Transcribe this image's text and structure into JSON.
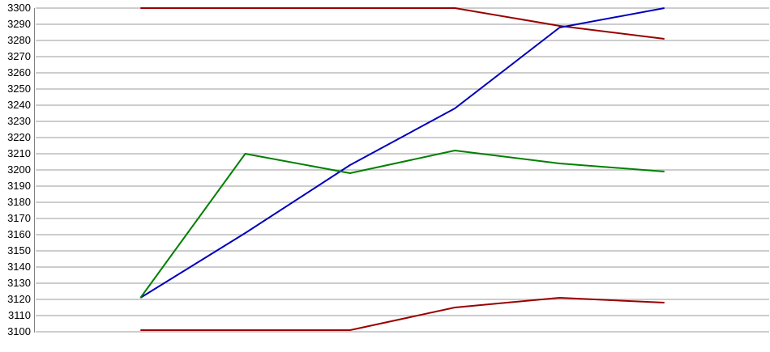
{
  "chart_data": {
    "type": "line",
    "title": "",
    "xlabel": "",
    "ylabel": "",
    "x": [
      1,
      2,
      3,
      4,
      5,
      6
    ],
    "series": [
      {
        "name": "dark-red-upper",
        "color": "#990000",
        "values": [
          3300,
          3300,
          3300,
          3300,
          3289,
          3281
        ]
      },
      {
        "name": "blue",
        "color": "#0000bb",
        "values": [
          3121,
          3161,
          3203,
          3238,
          3288,
          3300
        ]
      },
      {
        "name": "green",
        "color": "#008000",
        "values": [
          3121,
          3210,
          3198,
          3212,
          3204,
          3199
        ]
      },
      {
        "name": "dark-red-lower",
        "color": "#990000",
        "values": [
          3101,
          3101,
          3101,
          3115,
          3121,
          3118
        ]
      }
    ],
    "ylim": [
      3100,
      3300
    ],
    "y_tick_step": 10,
    "y_tick_labels": [
      "3300",
      "3290",
      "3280",
      "3270",
      "3260",
      "3250",
      "3240",
      "3230",
      "3220",
      "3210",
      "3200",
      "3190",
      "3180",
      "3170",
      "3160",
      "3150",
      "3140",
      "3130",
      "3120",
      "3110",
      "3100"
    ],
    "grid": true,
    "legend": "none",
    "x_tick_labels": [],
    "colors": {
      "background": "#ffffff",
      "grid_line": "#c6c6c6",
      "axis_line": "#808080",
      "tick_text": "#000000"
    }
  }
}
